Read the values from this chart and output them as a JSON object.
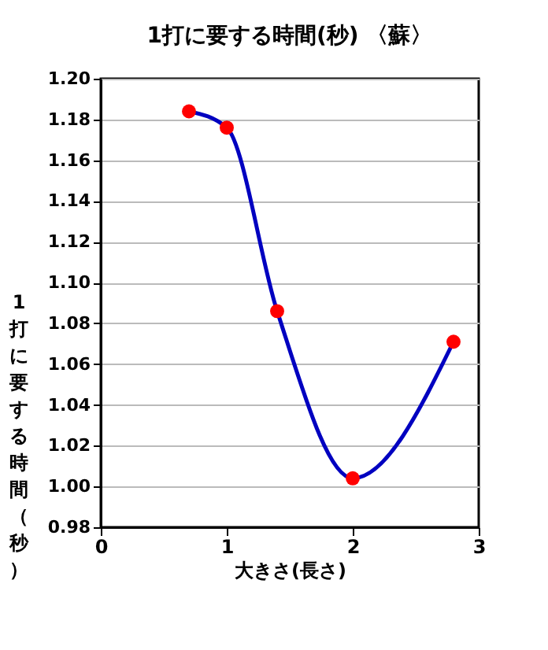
{
  "chart_data": {
    "type": "line",
    "title": "1打に要する時間(秒) 〈蘇〉",
    "xlabel": "大きさ(長さ)",
    "ylabel": "1打に要する時間（秒）",
    "x": [
      0.7,
      1.0,
      1.4,
      2.0,
      2.8
    ],
    "series": [
      {
        "color": "#0000c0",
        "values": [
          1.184,
          1.176,
          1.086,
          1.004,
          1.071
        ],
        "marker": "none"
      },
      {
        "type": "scatter",
        "color": "#ff0000",
        "values": [
          1.184,
          1.176,
          1.086,
          1.004,
          1.071
        ],
        "marker": "circle"
      }
    ],
    "xlim": [
      0,
      3
    ],
    "xticks": [
      0,
      1,
      2,
      3
    ],
    "ylim": [
      0.98,
      1.2
    ],
    "yticks": [
      0.98,
      {
        "value": 1.0,
        "label": "1.00"
      },
      1.02,
      1.04,
      1.06,
      1.08,
      {
        "value": 1.1,
        "label": "1.10"
      },
      1.12,
      1.14,
      1.16,
      1.18,
      {
        "value": 1.2,
        "label": "1.20"
      }
    ],
    "grid": "y"
  }
}
